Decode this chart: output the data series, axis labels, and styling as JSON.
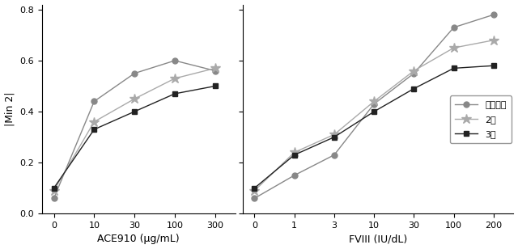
{
  "left_x_labels": [
    "0",
    "10",
    "30",
    "100",
    "300"
  ],
  "left_x_positions": [
    0,
    1,
    2,
    3,
    4
  ],
  "right_x_labels": [
    "0",
    "1",
    "3",
    "10",
    "30",
    "100",
    "200"
  ],
  "right_x_positions": [
    0,
    1,
    2,
    3,
    4,
    5,
    6
  ],
  "left_series": {
    "希釈なし": [
      0.06,
      0.44,
      0.55,
      0.6,
      0.56
    ],
    "2倍": [
      0.09,
      0.36,
      0.45,
      0.53,
      0.57
    ],
    "3倍": [
      0.1,
      0.33,
      0.4,
      0.47,
      0.5
    ]
  },
  "right_series": {
    "希釈なし": [
      0.06,
      0.15,
      0.23,
      0.43,
      0.55,
      0.73,
      0.78
    ],
    "2倍": [
      0.09,
      0.24,
      0.31,
      0.44,
      0.56,
      0.65,
      0.68
    ],
    "3倍": [
      0.1,
      0.23,
      0.3,
      0.4,
      0.49,
      0.57,
      0.58
    ]
  },
  "colors": {
    "希釈なし": "#888888",
    "2倍": "#aaaaaa",
    "3倍": "#222222"
  },
  "markers": {
    "希釈なし": "o",
    "2倍": "*",
    "3倍": "s"
  },
  "marker_sizes": {
    "希釈なし": 5,
    "2倍": 9,
    "3倍": 5
  },
  "ylabel": "|Min 2|",
  "left_xlabel": "ACE910 (μg/mL)",
  "right_xlabel": "FVIII (IU/dL)",
  "ylim": [
    0.0,
    0.82
  ],
  "yticks": [
    0.0,
    0.2,
    0.4,
    0.6,
    0.8
  ],
  "legend_labels": [
    "希釈なし",
    "2倍",
    "3倍"
  ],
  "background_color": "#ffffff",
  "line_width": 1.0
}
